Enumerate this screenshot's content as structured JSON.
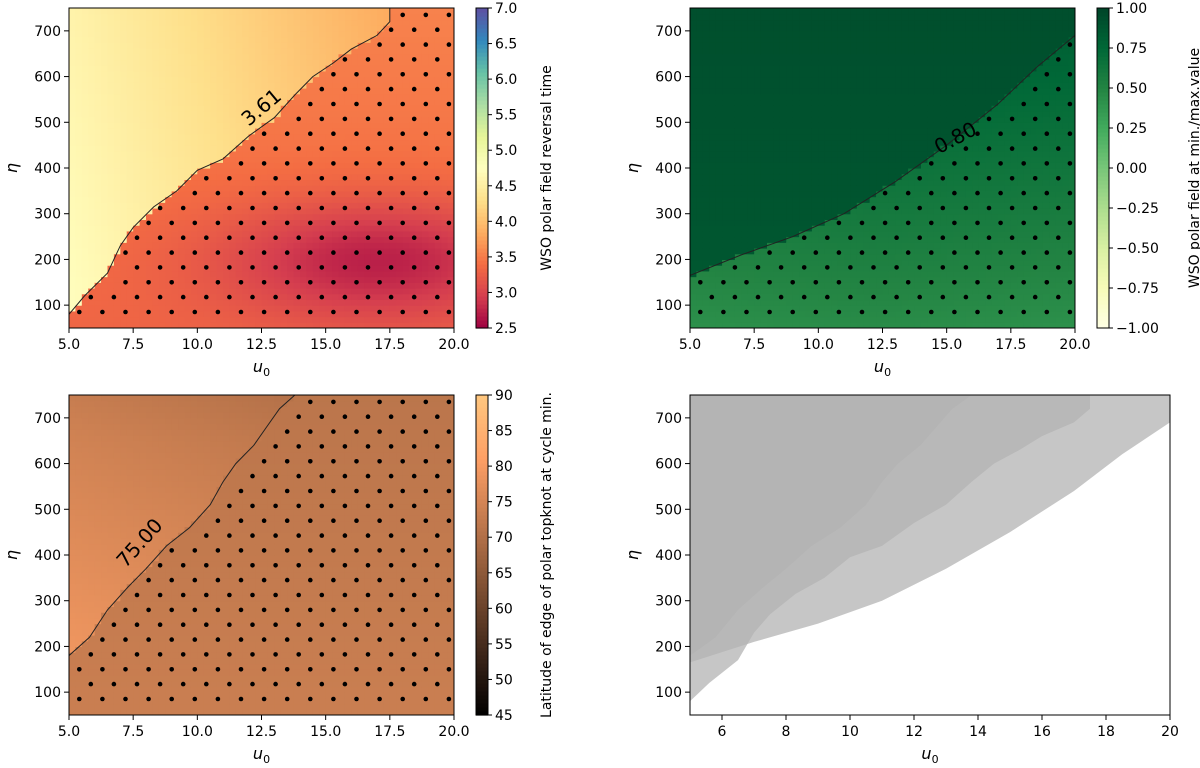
{
  "chart_data": [
    {
      "type": "heatmap",
      "xlabel": "u",
      "xlabel_sub": "0",
      "ylabel": "η",
      "xlim": [
        5,
        20
      ],
      "ylim": [
        50,
        750
      ],
      "xticks": [
        "5.0",
        "7.5",
        "10.0",
        "12.5",
        "15.0",
        "17.5",
        "20.0"
      ],
      "yticks": [
        "100",
        "200",
        "300",
        "400",
        "500",
        "600",
        "700"
      ],
      "colorbar": {
        "label": "WSO polar field reversal time",
        "range": [
          2.5,
          7.0
        ],
        "ticks": [
          "2.5",
          "3.0",
          "3.5",
          "4.0",
          "4.5",
          "5.0",
          "5.5",
          "6.0",
          "6.5",
          "7.0"
        ],
        "colormap": "Spectral",
        "colors": [
          "#9e0142",
          "#d53e4f",
          "#f46d43",
          "#fdae61",
          "#fee08b",
          "#ffffbf",
          "#e6f598",
          "#abdda4",
          "#66c2a5",
          "#3288bd",
          "#5e4fa2"
        ]
      },
      "contour_level_label": "3.61",
      "contour_boundary": [
        [
          5.0,
          80
        ],
        [
          5.6,
          120
        ],
        [
          6.5,
          170
        ],
        [
          7.0,
          230
        ],
        [
          7.5,
          270
        ],
        [
          8.3,
          315
        ],
        [
          9.2,
          350
        ],
        [
          10.0,
          395
        ],
        [
          11.0,
          420
        ],
        [
          12.0,
          470
        ],
        [
          13.0,
          510
        ],
        [
          13.8,
          560
        ],
        [
          14.5,
          600
        ],
        [
          15.3,
          630
        ],
        [
          16.0,
          660
        ],
        [
          17.0,
          690
        ],
        [
          17.5,
          720
        ],
        [
          17.5,
          750
        ]
      ],
      "stippled_region": "below contour",
      "hatch": "dots"
    },
    {
      "type": "heatmap",
      "xlabel": "u",
      "xlabel_sub": "0",
      "ylabel": "η",
      "xlim": [
        5,
        20
      ],
      "ylim": [
        50,
        750
      ],
      "xticks": [
        "5.0",
        "7.5",
        "10.0",
        "12.5",
        "15.0",
        "17.5",
        "20.0"
      ],
      "yticks": [
        "100",
        "200",
        "300",
        "400",
        "500",
        "600",
        "700"
      ],
      "colorbar": {
        "label": "WSO polar field at min./max.value",
        "range": [
          -1.0,
          1.0
        ],
        "ticks": [
          "−1.00",
          "−0.75",
          "−0.50",
          "−0.25",
          "0.00",
          "0.25",
          "0.50",
          "0.75",
          "1.00"
        ],
        "colormap": "YlGn",
        "colors": [
          "#ffffe5",
          "#f7fcb9",
          "#d9f0a3",
          "#addd8e",
          "#78c679",
          "#41ab5d",
          "#238443",
          "#006837",
          "#004529"
        ]
      },
      "contour_level_label": "0.80",
      "contour_boundary": [
        [
          5.0,
          165
        ],
        [
          7.0,
          210
        ],
        [
          9.0,
          250
        ],
        [
          11.0,
          300
        ],
        [
          13.0,
          370
        ],
        [
          15.0,
          450
        ],
        [
          17.0,
          540
        ],
        [
          18.5,
          620
        ],
        [
          20.0,
          690
        ]
      ],
      "stippled_region": "below contour",
      "hatch": "dots"
    },
    {
      "type": "heatmap",
      "xlabel": "u",
      "xlabel_sub": "0",
      "ylabel": "η",
      "xlim": [
        5,
        20
      ],
      "ylim": [
        50,
        750
      ],
      "xticks": [
        "5.0",
        "7.5",
        "10.0",
        "12.5",
        "15.0",
        "17.5",
        "20.0"
      ],
      "yticks": [
        "100",
        "200",
        "300",
        "400",
        "500",
        "600",
        "700"
      ],
      "colorbar": {
        "label": "Latitude of edge of polar topknot at cycle min.",
        "range": [
          45,
          90
        ],
        "ticks": [
          "45",
          "50",
          "55",
          "60",
          "65",
          "70",
          "75",
          "80",
          "85",
          "90"
        ],
        "colormap": "copper",
        "colors": [
          "#000000",
          "#3f271a",
          "#7f5033",
          "#bf784d",
          "#fe9f65",
          "#ffc77f"
        ]
      },
      "contour_level_label": "75.00",
      "contour_boundary": [
        [
          5.0,
          180
        ],
        [
          5.8,
          220
        ],
        [
          6.5,
          280
        ],
        [
          7.3,
          330
        ],
        [
          8.0,
          370
        ],
        [
          8.8,
          420
        ],
        [
          9.7,
          460
        ],
        [
          10.5,
          510
        ],
        [
          11.0,
          560
        ],
        [
          11.5,
          600
        ],
        [
          12.2,
          640
        ],
        [
          12.7,
          680
        ],
        [
          13.2,
          720
        ],
        [
          13.8,
          750
        ]
      ],
      "stippled_region": "below contour",
      "hatch": "dots"
    },
    {
      "type": "area",
      "xlabel": "u",
      "xlabel_sub": "0",
      "ylabel": "η",
      "xlim": [
        5,
        20
      ],
      "ylim": [
        50,
        750
      ],
      "xticks": [
        "6",
        "8",
        "10",
        "12",
        "14",
        "16",
        "18",
        "20"
      ],
      "yticks": [
        "100",
        "200",
        "300",
        "400",
        "500",
        "600",
        "700"
      ],
      "fill_color": "#b3b3b3",
      "fill_opacity": 0.75,
      "regions": [
        {
          "description": "region from panel 1",
          "boundary": [
            [
              5.0,
              80
            ],
            [
              5.6,
              120
            ],
            [
              6.5,
              170
            ],
            [
              7.0,
              230
            ],
            [
              7.5,
              270
            ],
            [
              8.3,
              315
            ],
            [
              9.2,
              350
            ],
            [
              10.0,
              395
            ],
            [
              11.0,
              420
            ],
            [
              12.0,
              470
            ],
            [
              13.0,
              510
            ],
            [
              13.8,
              560
            ],
            [
              14.5,
              600
            ],
            [
              15.3,
              630
            ],
            [
              16.0,
              660
            ],
            [
              17.0,
              690
            ],
            [
              17.5,
              720
            ],
            [
              17.5,
              750
            ]
          ]
        },
        {
          "description": "region from panel 2",
          "boundary": [
            [
              5.0,
              165
            ],
            [
              7.0,
              210
            ],
            [
              9.0,
              250
            ],
            [
              11.0,
              300
            ],
            [
              13.0,
              370
            ],
            [
              15.0,
              450
            ],
            [
              17.0,
              540
            ],
            [
              18.5,
              620
            ],
            [
              20.0,
              690
            ]
          ]
        },
        {
          "description": "region from panel 3",
          "boundary": [
            [
              5.0,
              180
            ],
            [
              5.8,
              220
            ],
            [
              6.5,
              280
            ],
            [
              7.3,
              330
            ],
            [
              8.0,
              370
            ],
            [
              8.8,
              420
            ],
            [
              9.7,
              460
            ],
            [
              10.5,
              510
            ],
            [
              11.0,
              560
            ],
            [
              11.5,
              600
            ],
            [
              12.2,
              640
            ],
            [
              12.7,
              680
            ],
            [
              13.2,
              720
            ],
            [
              13.8,
              750
            ]
          ]
        }
      ]
    }
  ]
}
